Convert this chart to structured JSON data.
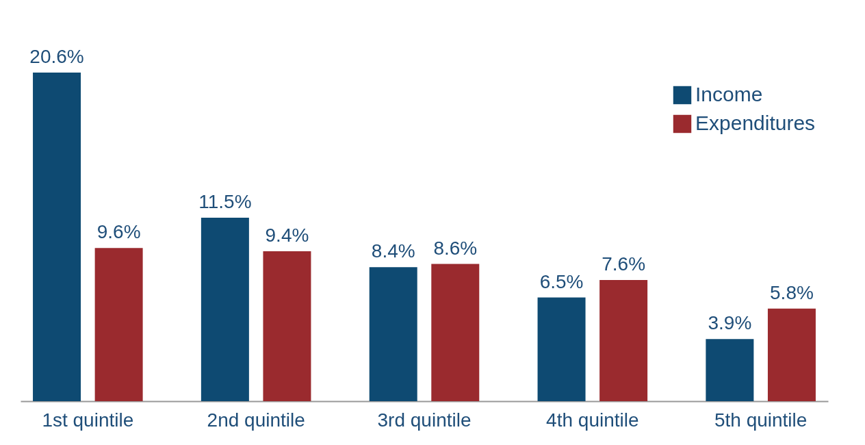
{
  "chart_data": {
    "type": "bar",
    "categories": [
      "1st quintile",
      "2nd quintile",
      "3rd quintile",
      "4th quintile",
      "5th quintile"
    ],
    "series": [
      {
        "name": "Income",
        "color": "#0e4a72",
        "values": [
          20.6,
          11.5,
          8.4,
          6.5,
          3.9
        ],
        "value_labels": [
          "20.6%",
          "11.5%",
          "8.4%",
          "6.5%",
          "3.9%"
        ]
      },
      {
        "name": "Expenditures",
        "color": "#9a2a2e",
        "values": [
          9.6,
          9.4,
          8.6,
          7.6,
          5.8
        ],
        "value_labels": [
          "9.6%",
          "9.4%",
          "8.6%",
          "7.6%",
          "5.8%"
        ]
      }
    ],
    "legend": "top right",
    "grid": false
  }
}
